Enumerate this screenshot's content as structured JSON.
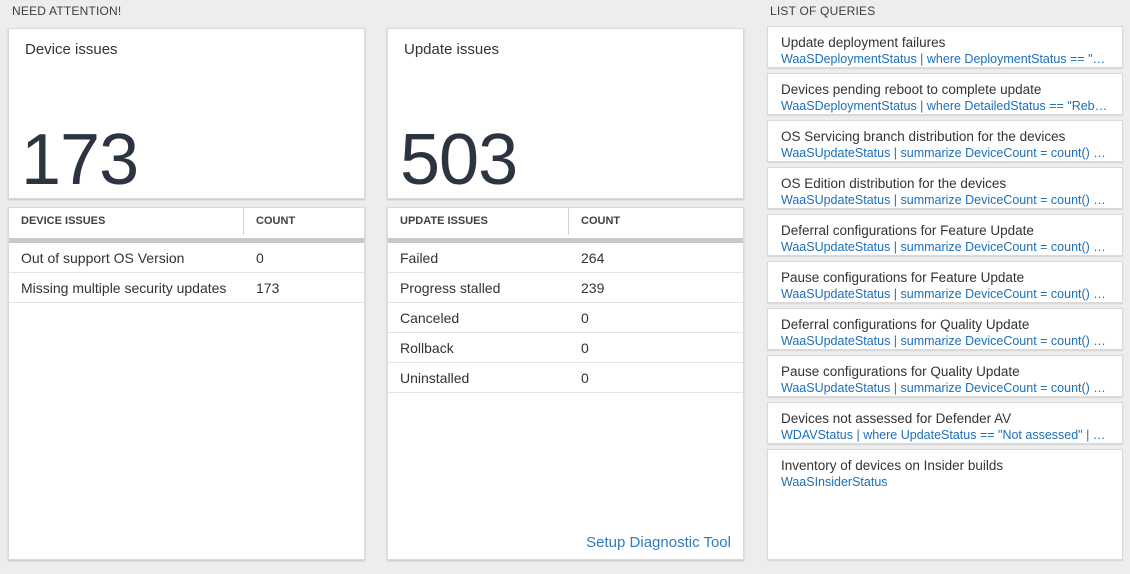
{
  "section_headers": {
    "need_attention": "NEED ATTENTION!",
    "list_of_queries": "LIST OF QUERIES"
  },
  "device_tile": {
    "title": "Device issues",
    "count": "173"
  },
  "device_table": {
    "col_issue": "DEVICE ISSUES",
    "col_count": "COUNT",
    "rows": [
      {
        "label": "Out of support OS Version",
        "count": "0"
      },
      {
        "label": "Missing multiple security updates",
        "count": "173"
      }
    ]
  },
  "update_tile": {
    "title": "Update issues",
    "count": "503"
  },
  "update_table": {
    "col_issue": "UPDATE ISSUES",
    "col_count": "COUNT",
    "rows": [
      {
        "label": "Failed",
        "count": "264"
      },
      {
        "label": "Progress stalled",
        "count": "239"
      },
      {
        "label": "Canceled",
        "count": "0"
      },
      {
        "label": "Rollback",
        "count": "0"
      },
      {
        "label": "Uninstalled",
        "count": "0"
      }
    ],
    "footer_link": "Setup Diagnostic Tool"
  },
  "queries": [
    {
      "title": "Update deployment failures",
      "query": "WaaSDeploymentStatus | where DeploymentStatus == \"Failed\" |..."
    },
    {
      "title": "Devices pending reboot to complete update",
      "query": "WaaSDeploymentStatus | where DetailedStatus == \"Reboot pend..."
    },
    {
      "title": "OS Servicing branch distribution for the devices",
      "query": "WaaSUpdateStatus | summarize DeviceCount = count() by OSSer..."
    },
    {
      "title": "OS Edition distribution for the devices",
      "query": "WaaSUpdateStatus | summarize DeviceCount = count() by OSEdit..."
    },
    {
      "title": "Deferral configurations for Feature Update",
      "query": "WaaSUpdateStatus | summarize DeviceCount = count() by Featur..."
    },
    {
      "title": "Pause configurations for Feature Update",
      "query": "WaaSUpdateStatus | summarize DeviceCount = count() by Featur..."
    },
    {
      "title": "Deferral configurations for Quality Update",
      "query": "WaaSUpdateStatus | summarize DeviceCount = count() by Qualit..."
    },
    {
      "title": "Pause configurations for Quality Update",
      "query": "WaaSUpdateStatus | summarize DeviceCount = count() by Qualit..."
    },
    {
      "title": "Devices not assessed for Defender AV",
      "query": "WDAVStatus | where UpdateStatus == \"Not assessed\" | render ta..."
    },
    {
      "title": "Inventory of devices on Insider builds",
      "query": "WaaSInsiderStatus"
    }
  ],
  "colors": {
    "page_bg": "#ededed",
    "query_blue": "#1c6fb8",
    "link_blue": "#2e7cc0",
    "big_number": "#2b3440",
    "grid_shadow_bar": "#c8c8c8"
  }
}
